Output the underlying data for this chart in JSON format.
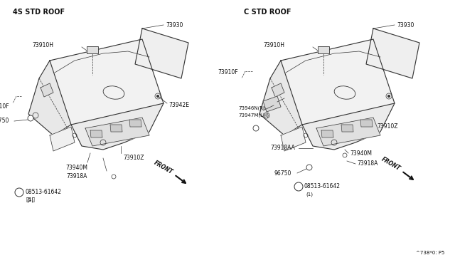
{
  "bg_color": "#ffffff",
  "line_color": "#333333",
  "text_color": "#111111",
  "left_title": "4S STD ROOF",
  "right_title": "C STD ROOF",
  "diagram_note": "^738*0: P5",
  "font_size": 5.5,
  "title_font_size": 7.0,
  "lw_main": 0.8,
  "lw_thin": 0.5,
  "lw_dashed": 0.5
}
